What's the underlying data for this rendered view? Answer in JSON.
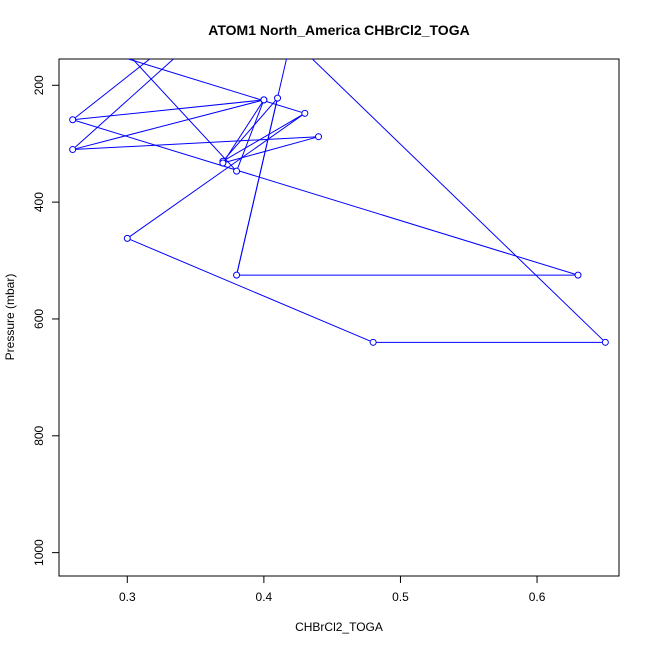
{
  "chart_data": {
    "type": "line",
    "title": "ATOM1 North_America CHBrCl2_TOGA",
    "xlabel": "CHBrCl2_TOGA",
    "ylabel": "Pressure (mbar)",
    "xlim": [
      0.25,
      0.66
    ],
    "ylim": [
      1040,
      155
    ],
    "y_reversed": true,
    "x_ticks": [
      "0.3",
      "0.4",
      "0.5",
      "0.6"
    ],
    "y_ticks": [
      "200",
      "400",
      "600",
      "800",
      "1000"
    ],
    "grid": false,
    "series": [
      {
        "color": "#0000ff",
        "marker": "open-circle",
        "points": [
          [
            0.65,
            640
          ],
          [
            0.48,
            640
          ],
          [
            0.3,
            462
          ],
          [
            0.43,
            248
          ],
          [
            0.37,
            330
          ],
          [
            0.41,
            222
          ],
          [
            0.38,
            525
          ],
          [
            0.63,
            525
          ],
          [
            0.26,
            259
          ],
          [
            0.4,
            225
          ],
          [
            0.37,
            333
          ],
          [
            0.44,
            288
          ],
          [
            0.26,
            310
          ],
          [
            0.4,
            225
          ],
          [
            0.38,
            347
          ]
        ],
        "offscreen_segments": [
          [
            [
              0.65,
              640
            ],
            [
              0.42,
              120
            ]
          ],
          [
            [
              0.26,
              310
            ],
            [
              0.36,
              100
            ]
          ],
          [
            [
              0.26,
              259
            ],
            [
              0.33,
              130
            ]
          ],
          [
            [
              0.38,
              347
            ],
            [
              0.29,
              120
            ]
          ],
          [
            [
              0.43,
              248
            ],
            [
              0.28,
              140
            ]
          ],
          [
            [
              0.38,
              525
            ],
            [
              0.42,
              120
            ]
          ]
        ]
      }
    ]
  }
}
